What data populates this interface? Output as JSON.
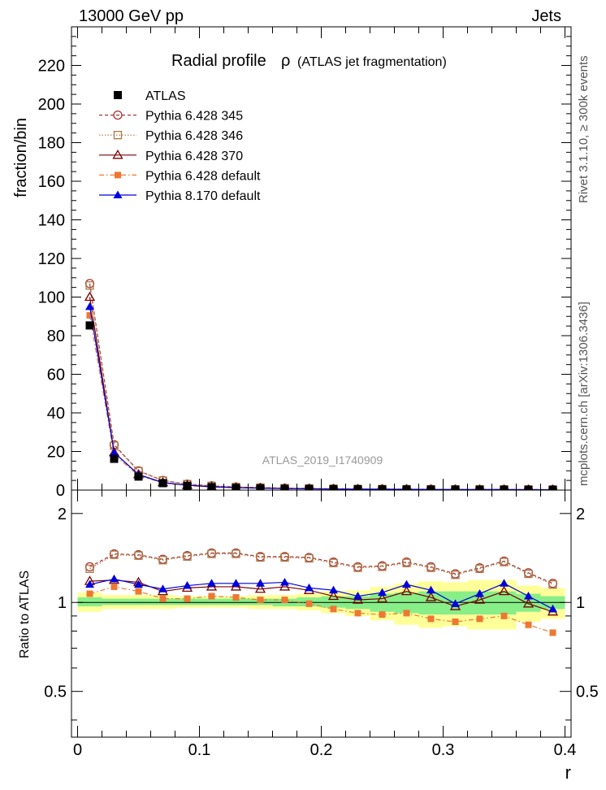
{
  "header": {
    "left": "13000 GeV pp",
    "right": "Jets"
  },
  "side_text": {
    "rivet": "Rivet 3.1.10, ≥ 300k events",
    "mcplots": "mcplots.cern.ch [arXiv:1306.3436]"
  },
  "chart_data": [
    {
      "type": "line",
      "title_main": "Radial profile",
      "title_symbol": "ρ",
      "title_sub": "(ATLAS jet fragmentation)",
      "ylabel": "fraction/bin",
      "watermark": "ATLAS_2019_I1740909",
      "ylim": [
        0,
        240
      ],
      "yticks": [
        "0",
        "20",
        "40",
        "60",
        "80",
        "100",
        "120",
        "140",
        "160",
        "180",
        "200",
        "220"
      ],
      "x": [
        0.01,
        0.03,
        0.05,
        0.07,
        0.09,
        0.11,
        0.13,
        0.15,
        0.17,
        0.19,
        0.21,
        0.23,
        0.25,
        0.27,
        0.29,
        0.31,
        0.33,
        0.35,
        0.37,
        0.39
      ],
      "series": [
        {
          "name": "ATLAS",
          "color": "#000000",
          "marker": "filled-square",
          "line": "none",
          "values": [
            85.3,
            16.2,
            7.0,
            3.6,
            2.2,
            1.5,
            1.1,
            0.9,
            0.7,
            0.6,
            0.5,
            0.45,
            0.4,
            0.35,
            0.3,
            0.28,
            0.25,
            0.23,
            0.21,
            0.2
          ]
        },
        {
          "name": "Pythia 6.428 345",
          "color": "#aa3333",
          "marker": "open-circle",
          "line": "dashed",
          "values": [
            107,
            23.5,
            10,
            5.0,
            3.1,
            2.2,
            1.6,
            1.3,
            1.0,
            0.85,
            0.68,
            0.58,
            0.53,
            0.48,
            0.41,
            0.35,
            0.33,
            0.32,
            0.27,
            0.23
          ]
        },
        {
          "name": "Pythia 6.428 346",
          "color": "#aa7744",
          "marker": "open-square",
          "line": "dotted",
          "values": [
            106,
            23.0,
            9.8,
            4.9,
            3.1,
            2.2,
            1.6,
            1.3,
            1.0,
            0.84,
            0.68,
            0.58,
            0.52,
            0.47,
            0.41,
            0.35,
            0.33,
            0.31,
            0.26,
            0.23
          ]
        },
        {
          "name": "Pythia 6.428 370",
          "color": "#770000",
          "marker": "open-triangle",
          "line": "solid",
          "values": [
            100,
            19.5,
            8.1,
            3.9,
            2.5,
            1.7,
            1.3,
            1.0,
            0.8,
            0.67,
            0.53,
            0.45,
            0.41,
            0.38,
            0.31,
            0.26,
            0.24,
            0.25,
            0.2,
            0.18
          ]
        },
        {
          "name": "Pythia 6.428 default",
          "color": "#ee7733",
          "marker": "filled-square-small",
          "line": "dashdot",
          "values": [
            90.5,
            18.3,
            7.6,
            3.7,
            2.3,
            1.55,
            1.15,
            0.92,
            0.71,
            0.58,
            0.46,
            0.4,
            0.37,
            0.32,
            0.26,
            0.24,
            0.21,
            0.2,
            0.17,
            0.155
          ]
        },
        {
          "name": "Pythia 8.170 default",
          "color": "#0000dd",
          "marker": "filled-triangle",
          "line": "solid",
          "values": [
            95,
            19.5,
            8.0,
            3.9,
            2.5,
            1.75,
            1.28,
            1.03,
            0.82,
            0.66,
            0.55,
            0.47,
            0.43,
            0.4,
            0.33,
            0.28,
            0.26,
            0.27,
            0.22,
            0.19
          ]
        }
      ]
    },
    {
      "type": "line",
      "ylabel": "Ratio to ATLAS",
      "xlabel": "r",
      "ylim": [
        0.35,
        2.4
      ],
      "yscale": "log",
      "yticks": [
        "0.5",
        "1",
        "2"
      ],
      "xticks": [
        "0",
        "0.1",
        "0.2",
        "0.3",
        "0.4"
      ],
      "xlim": [
        -0.005,
        0.405
      ],
      "bands": {
        "yellow": [
          [
            0.93,
            1.08
          ],
          [
            0.95,
            1.06
          ],
          [
            0.95,
            1.06
          ],
          [
            0.95,
            1.06
          ],
          [
            0.96,
            1.05
          ],
          [
            0.96,
            1.05
          ],
          [
            0.96,
            1.05
          ],
          [
            0.95,
            1.06
          ],
          [
            0.95,
            1.06
          ],
          [
            0.94,
            1.07
          ],
          [
            0.92,
            1.09
          ],
          [
            0.9,
            1.1
          ],
          [
            0.87,
            1.13
          ],
          [
            0.84,
            1.16
          ],
          [
            0.82,
            1.18
          ],
          [
            0.83,
            1.17
          ],
          [
            0.81,
            1.19
          ],
          [
            0.81,
            1.19
          ],
          [
            0.86,
            1.14
          ],
          [
            0.88,
            1.12
          ]
        ],
        "green": [
          [
            0.97,
            1.04
          ],
          [
            0.98,
            1.03
          ],
          [
            0.98,
            1.03
          ],
          [
            0.98,
            1.03
          ],
          [
            0.98,
            1.03
          ],
          [
            0.98,
            1.03
          ],
          [
            0.98,
            1.03
          ],
          [
            0.98,
            1.03
          ],
          [
            0.97,
            1.03
          ],
          [
            0.97,
            1.04
          ],
          [
            0.96,
            1.05
          ],
          [
            0.95,
            1.05
          ],
          [
            0.93,
            1.07
          ],
          [
            0.92,
            1.08
          ],
          [
            0.91,
            1.09
          ],
          [
            0.91,
            1.09
          ],
          [
            0.91,
            1.09
          ],
          [
            0.91,
            1.09
          ],
          [
            0.93,
            1.07
          ],
          [
            0.95,
            1.05
          ]
        ],
        "yellow_color": "#ffff99",
        "green_color": "#88ee88"
      },
      "series": [
        {
          "name": "Pythia 6.428 345",
          "color": "#aa3333",
          "marker": "open-circle",
          "line": "dashed",
          "values": [
            1.32,
            1.46,
            1.45,
            1.4,
            1.44,
            1.47,
            1.47,
            1.43,
            1.43,
            1.42,
            1.37,
            1.32,
            1.33,
            1.37,
            1.32,
            1.25,
            1.31,
            1.38,
            1.26,
            1.16
          ]
        },
        {
          "name": "Pythia 6.428 346",
          "color": "#aa7744",
          "marker": "open-square",
          "line": "dotted",
          "values": [
            1.3,
            1.45,
            1.44,
            1.39,
            1.43,
            1.46,
            1.46,
            1.42,
            1.42,
            1.41,
            1.36,
            1.31,
            1.32,
            1.36,
            1.31,
            1.24,
            1.3,
            1.37,
            1.25,
            1.15
          ]
        },
        {
          "name": "Pythia 6.428 370",
          "color": "#770000",
          "marker": "open-triangle",
          "line": "solid",
          "values": [
            1.18,
            1.19,
            1.17,
            1.09,
            1.12,
            1.13,
            1.13,
            1.11,
            1.13,
            1.1,
            1.05,
            1.02,
            1.03,
            1.09,
            1.04,
            0.97,
            1.02,
            1.09,
            0.99,
            0.93
          ]
        },
        {
          "name": "Pythia 6.428 default",
          "color": "#ee7733",
          "marker": "filled-square-small",
          "line": "dashdot",
          "values": [
            1.07,
            1.13,
            1.09,
            1.03,
            1.03,
            1.05,
            1.04,
            1.02,
            1.02,
            0.99,
            0.95,
            0.92,
            0.91,
            0.92,
            0.88,
            0.86,
            0.88,
            0.9,
            0.84,
            0.79
          ]
        },
        {
          "name": "Pythia 8.170 default",
          "color": "#0000dd",
          "marker": "filled-triangle",
          "line": "solid",
          "values": [
            1.15,
            1.2,
            1.15,
            1.11,
            1.14,
            1.16,
            1.16,
            1.16,
            1.17,
            1.12,
            1.1,
            1.05,
            1.08,
            1.15,
            1.1,
            0.99,
            1.07,
            1.16,
            1.05,
            0.95
          ]
        }
      ]
    }
  ]
}
